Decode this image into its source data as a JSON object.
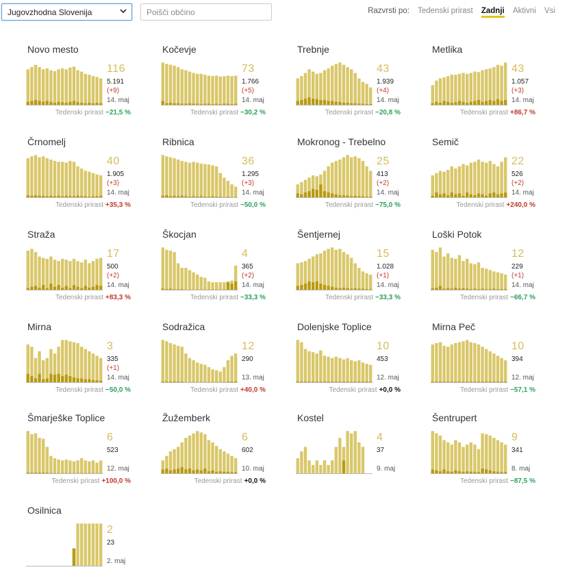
{
  "filters": {
    "region": "Jugovzhodna Slovenija",
    "search_placeholder": "Poišči občino",
    "sort_label": "Razvrsti po:",
    "sort_options": [
      "Tedenski prirast",
      "Zadnji",
      "Aktivni",
      "Vsi"
    ],
    "sort_active": "Zadnji"
  },
  "growth_label": "Tedenski prirast",
  "colors": {
    "bar": "#d9c76a",
    "bar_dark": "#b89a10",
    "negative": "#2ea05a",
    "positive": "#c0392b",
    "accent": "#e8c419"
  },
  "municipalities": [
    {
      "name": "Novo mesto",
      "active": "116",
      "total": "5.191",
      "delta": "(+9)",
      "date": "14. maj",
      "growth": "−21,5 %",
      "trend": "neg",
      "bars": [
        0.8,
        0.85,
        0.9,
        0.85,
        0.8,
        0.82,
        0.78,
        0.76,
        0.8,
        0.82,
        0.8,
        0.84,
        0.86,
        0.78,
        0.75,
        0.7,
        0.68,
        0.65,
        0.63,
        0.6
      ],
      "dark": [
        0.08,
        0.1,
        0.12,
        0.1,
        0.08,
        0.1,
        0.08,
        0.06,
        0.08,
        0.07,
        0.06,
        0.08,
        0.1,
        0.07,
        0.06,
        0.05,
        0.06,
        0.05,
        0.06,
        0.05
      ]
    },
    {
      "name": "Kočevje",
      "active": "73",
      "total": "1.766",
      "delta": "(+5)",
      "date": "14. maj",
      "growth": "−30,2 %",
      "trend": "neg",
      "bars": [
        0.95,
        0.92,
        0.9,
        0.88,
        0.85,
        0.8,
        0.78,
        0.75,
        0.72,
        0.7,
        0.7,
        0.68,
        0.66,
        0.65,
        0.66,
        0.64,
        0.65,
        0.66,
        0.65,
        0.66
      ],
      "dark": [
        0.1,
        0.05,
        0.06,
        0.05,
        0.05,
        0.04,
        0.04,
        0.05,
        0.04,
        0.04,
        0.03,
        0.04,
        0.04,
        0.03,
        0.04,
        0.03,
        0.04,
        0.04,
        0.03,
        0.04
      ]
    },
    {
      "name": "Trebnje",
      "active": "43",
      "total": "1.939",
      "delta": "(+4)",
      "date": "14. maj",
      "growth": "−20,8 %",
      "trend": "neg",
      "bars": [
        0.6,
        0.65,
        0.72,
        0.8,
        0.75,
        0.7,
        0.72,
        0.78,
        0.82,
        0.88,
        0.92,
        0.95,
        0.9,
        0.85,
        0.8,
        0.72,
        0.6,
        0.52,
        0.48,
        0.4
      ],
      "dark": [
        0.1,
        0.12,
        0.15,
        0.18,
        0.15,
        0.14,
        0.12,
        0.12,
        0.1,
        0.1,
        0.08,
        0.08,
        0.06,
        0.06,
        0.05,
        0.05,
        0.04,
        0.04,
        0.03,
        0.03
      ]
    },
    {
      "name": "Metlika",
      "active": "43",
      "total": "1.057",
      "delta": "(+3)",
      "date": "14. maj",
      "growth": "+86,7 %",
      "trend": "pos",
      "bars": [
        0.45,
        0.55,
        0.6,
        0.62,
        0.65,
        0.68,
        0.68,
        0.7,
        0.72,
        0.7,
        0.72,
        0.75,
        0.74,
        0.78,
        0.8,
        0.82,
        0.85,
        0.9,
        0.88,
        0.95
      ],
      "dark": [
        0.05,
        0.08,
        0.06,
        0.1,
        0.08,
        0.06,
        0.07,
        0.1,
        0.08,
        0.06,
        0.08,
        0.1,
        0.12,
        0.08,
        0.1,
        0.12,
        0.1,
        0.14,
        0.1,
        0.12
      ]
    },
    {
      "name": "Črnomelj",
      "active": "40",
      "total": "1.905",
      "delta": "(+3)",
      "date": "14. maj",
      "growth": "+35,3 %",
      "trend": "pos",
      "bars": [
        0.88,
        0.92,
        0.95,
        0.9,
        0.92,
        0.88,
        0.85,
        0.82,
        0.8,
        0.8,
        0.78,
        0.82,
        0.8,
        0.7,
        0.65,
        0.6,
        0.58,
        0.55,
        0.52,
        0.5
      ],
      "dark": [
        0.06,
        0.05,
        0.06,
        0.05,
        0.05,
        0.04,
        0.05,
        0.04,
        0.05,
        0.04,
        0.05,
        0.04,
        0.04,
        0.05,
        0.04,
        0.04,
        0.03,
        0.04,
        0.04,
        0.05
      ]
    },
    {
      "name": "Ribnica",
      "active": "36",
      "total": "1.295",
      "delta": "(+3)",
      "date": "14. maj",
      "growth": "−50,0 %",
      "trend": "neg",
      "bars": [
        0.95,
        0.92,
        0.9,
        0.88,
        0.85,
        0.82,
        0.8,
        0.78,
        0.8,
        0.78,
        0.76,
        0.75,
        0.74,
        0.72,
        0.7,
        0.55,
        0.45,
        0.38,
        0.3,
        0.25
      ],
      "dark": [
        0.05,
        0.06,
        0.04,
        0.05,
        0.04,
        0.05,
        0.04,
        0.03,
        0.04,
        0.03,
        0.04,
        0.03,
        0.03,
        0.04,
        0.03,
        0.03,
        0.02,
        0.03,
        0.02,
        0.02
      ]
    },
    {
      "name": "Mokronog - Trebelno",
      "active": "25",
      "total": "413",
      "delta": "(+2)",
      "date": "14. maj",
      "growth": "−75,0 %",
      "trend": "neg",
      "bars": [
        0.3,
        0.35,
        0.4,
        0.45,
        0.5,
        0.48,
        0.52,
        0.6,
        0.7,
        0.78,
        0.82,
        0.85,
        0.9,
        0.95,
        0.9,
        0.92,
        0.88,
        0.82,
        0.7,
        0.6
      ],
      "dark": [
        0.1,
        0.08,
        0.12,
        0.15,
        0.2,
        0.18,
        0.3,
        0.15,
        0.12,
        0.1,
        0.08,
        0.06,
        0.06,
        0.05,
        0.04,
        0.05,
        0.04,
        0.04,
        0.03,
        0.03
      ]
    },
    {
      "name": "Semič",
      "active": "22",
      "total": "526",
      "delta": "(+2)",
      "date": "14. maj",
      "growth": "+240,0 %",
      "trend": "pos",
      "bars": [
        0.5,
        0.55,
        0.6,
        0.58,
        0.62,
        0.7,
        0.65,
        0.7,
        0.75,
        0.72,
        0.78,
        0.8,
        0.85,
        0.8,
        0.78,
        0.82,
        0.75,
        0.7,
        0.8,
        0.9
      ],
      "dark": [
        0.05,
        0.12,
        0.08,
        0.1,
        0.06,
        0.12,
        0.08,
        0.1,
        0.05,
        0.12,
        0.08,
        0.06,
        0.1,
        0.08,
        0.05,
        0.1,
        0.12,
        0.08,
        0.1,
        0.12
      ]
    },
    {
      "name": "Straža",
      "active": "17",
      "total": "500",
      "delta": "(+2)",
      "date": "14. maj",
      "growth": "+83,3 %",
      "trend": "pos",
      "bars": [
        0.88,
        0.92,
        0.85,
        0.75,
        0.72,
        0.7,
        0.75,
        0.68,
        0.65,
        0.7,
        0.68,
        0.65,
        0.7,
        0.65,
        0.62,
        0.68,
        0.6,
        0.65,
        0.7,
        0.72
      ],
      "dark": [
        0.05,
        0.08,
        0.1,
        0.06,
        0.12,
        0.05,
        0.15,
        0.08,
        0.12,
        0.06,
        0.1,
        0.05,
        0.12,
        0.08,
        0.05,
        0.1,
        0.06,
        0.08,
        0.12,
        0.1
      ]
    },
    {
      "name": "Škocjan",
      "active": "4",
      "total": "365",
      "delta": "(+2)",
      "date": "14. maj",
      "growth": "−33,3 %",
      "trend": "neg",
      "bars": [
        0.95,
        0.9,
        0.88,
        0.85,
        0.6,
        0.5,
        0.5,
        0.45,
        0.4,
        0.35,
        0.3,
        0.28,
        0.2,
        0.18,
        0.18,
        0.18,
        0.18,
        0.2,
        0.22,
        0.55
      ],
      "dark": [
        0.04,
        0.03,
        0.04,
        0.03,
        0.03,
        0.03,
        0.02,
        0.02,
        0.02,
        0.02,
        0.02,
        0.02,
        0.02,
        0.02,
        0.02,
        0.02,
        0.02,
        0.18,
        0.15,
        0.2
      ]
    },
    {
      "name": "Šentjernej",
      "active": "15",
      "total": "1.028",
      "delta": "(+1)",
      "date": "14. maj",
      "growth": "−33,3 %",
      "trend": "neg",
      "bars": [
        0.6,
        0.62,
        0.65,
        0.7,
        0.75,
        0.8,
        0.82,
        0.88,
        0.92,
        0.95,
        0.9,
        0.92,
        0.85,
        0.8,
        0.72,
        0.6,
        0.5,
        0.42,
        0.38,
        0.35
      ],
      "dark": [
        0.1,
        0.12,
        0.15,
        0.2,
        0.18,
        0.2,
        0.15,
        0.12,
        0.1,
        0.08,
        0.06,
        0.05,
        0.06,
        0.05,
        0.04,
        0.05,
        0.04,
        0.04,
        0.03,
        0.03
      ]
    },
    {
      "name": "Loški Potok",
      "active": "12",
      "total": "229",
      "delta": "(+1)",
      "date": "14. maj",
      "growth": "−66,7 %",
      "trend": "neg",
      "bars": [
        0.9,
        0.85,
        0.95,
        0.75,
        0.82,
        0.72,
        0.7,
        0.78,
        0.65,
        0.7,
        0.6,
        0.58,
        0.62,
        0.5,
        0.48,
        0.45,
        0.42,
        0.4,
        0.38,
        0.35
      ],
      "dark": [
        0.05,
        0.06,
        0.1,
        0.04,
        0.05,
        0.04,
        0.06,
        0.04,
        0.05,
        0.04,
        0.03,
        0.04,
        0.03,
        0.04,
        0.03,
        0.03,
        0.04,
        0.03,
        0.03,
        0.03
      ]
    },
    {
      "name": "Mirna",
      "active": "3",
      "total": "335",
      "delta": "(+1)",
      "date": "14. maj",
      "growth": "−50,0 %",
      "trend": "neg",
      "bars": [
        0.85,
        0.8,
        0.55,
        0.7,
        0.5,
        0.55,
        0.75,
        0.65,
        0.8,
        0.95,
        0.95,
        0.92,
        0.9,
        0.88,
        0.8,
        0.75,
        0.7,
        0.65,
        0.6,
        0.55
      ],
      "dark": [
        0.2,
        0.15,
        0.1,
        0.2,
        0.08,
        0.1,
        0.2,
        0.18,
        0.2,
        0.15,
        0.18,
        0.15,
        0.12,
        0.1,
        0.1,
        0.08,
        0.08,
        0.06,
        0.06,
        0.05
      ]
    },
    {
      "name": "Sodražica",
      "active": "12",
      "total": "290",
      "delta": "",
      "date": "13. maj",
      "growth": "+40,0 %",
      "trend": "pos",
      "bars": [
        0.95,
        0.92,
        0.88,
        0.85,
        0.82,
        0.8,
        0.65,
        0.55,
        0.5,
        0.45,
        0.42,
        0.4,
        0.35,
        0.3,
        0.28,
        0.25,
        0.35,
        0.5,
        0.6,
        0.65
      ],
      "dark": [
        0.03,
        0.03,
        0.03,
        0.03,
        0.03,
        0.03,
        0.02,
        0.02,
        0.02,
        0.02,
        0.02,
        0.02,
        0.02,
        0.02,
        0.02,
        0.02,
        0.02,
        0.03,
        0.03,
        0.03
      ]
    },
    {
      "name": "Dolenjske Toplice",
      "active": "10",
      "total": "453",
      "delta": "",
      "date": "12. maj",
      "growth": "+0,0 %",
      "trend": "zero",
      "bars": [
        0.95,
        0.9,
        0.75,
        0.7,
        0.68,
        0.65,
        0.72,
        0.6,
        0.58,
        0.55,
        0.58,
        0.55,
        0.52,
        0.55,
        0.5,
        0.48,
        0.5,
        0.45,
        0.42,
        0.4
      ],
      "dark": [
        0.03,
        0.03,
        0.03,
        0.03,
        0.03,
        0.03,
        0.03,
        0.03,
        0.03,
        0.03,
        0.03,
        0.03,
        0.03,
        0.03,
        0.03,
        0.03,
        0.03,
        0.03,
        0.03,
        0.03
      ]
    },
    {
      "name": "Mirna Peč",
      "active": "10",
      "total": "394",
      "delta": "",
      "date": "12. maj",
      "growth": "−57,1 %",
      "trend": "neg",
      "bars": [
        0.85,
        0.88,
        0.9,
        0.82,
        0.8,
        0.85,
        0.88,
        0.9,
        0.92,
        0.95,
        0.9,
        0.88,
        0.85,
        0.8,
        0.75,
        0.7,
        0.65,
        0.6,
        0.55,
        0.5
      ],
      "dark": [
        0.03,
        0.03,
        0.03,
        0.03,
        0.03,
        0.03,
        0.03,
        0.03,
        0.03,
        0.03,
        0.03,
        0.03,
        0.03,
        0.03,
        0.03,
        0.03,
        0.03,
        0.03,
        0.03,
        0.03
      ]
    },
    {
      "name": "Šmarješke Toplice",
      "active": "6",
      "total": "523",
      "delta": "",
      "date": "12. maj",
      "growth": "+100,0 %",
      "trend": "pos",
      "bars": [
        0.95,
        0.88,
        0.9,
        0.8,
        0.78,
        0.6,
        0.4,
        0.35,
        0.32,
        0.3,
        0.32,
        0.3,
        0.28,
        0.3,
        0.35,
        0.3,
        0.28,
        0.3,
        0.25,
        0.3
      ],
      "dark": [
        0.03,
        0.03,
        0.03,
        0.03,
        0.03,
        0.03,
        0.02,
        0.02,
        0.02,
        0.02,
        0.02,
        0.02,
        0.02,
        0.02,
        0.02,
        0.02,
        0.02,
        0.02,
        0.02,
        0.02
      ]
    },
    {
      "name": "Žužemberk",
      "active": "6",
      "total": "602",
      "delta": "",
      "date": "10. maj",
      "growth": "+0,0 %",
      "trend": "zero",
      "bars": [
        0.3,
        0.4,
        0.5,
        0.55,
        0.6,
        0.7,
        0.8,
        0.85,
        0.9,
        0.95,
        0.92,
        0.88,
        0.75,
        0.7,
        0.62,
        0.55,
        0.5,
        0.45,
        0.4,
        0.35
      ],
      "dark": [
        0.1,
        0.12,
        0.08,
        0.1,
        0.12,
        0.15,
        0.1,
        0.12,
        0.08,
        0.1,
        0.08,
        0.12,
        0.06,
        0.08,
        0.05,
        0.06,
        0.05,
        0.05,
        0.04,
        0.04
      ]
    },
    {
      "name": "Kostel",
      "active": "4",
      "total": "37",
      "delta": "",
      "date": "9. maj",
      "growth": "",
      "trend": "zero",
      "bars": [
        0.35,
        0.5,
        0.6,
        0.3,
        0.2,
        0.3,
        0.2,
        0.3,
        0.2,
        0.3,
        0.6,
        0.8,
        0.6,
        0.95,
        0.9,
        0.95,
        0.7,
        0.6,
        0.0,
        0.0
      ],
      "dark": [
        0.0,
        0.0,
        0.0,
        0.0,
        0.0,
        0.0,
        0.0,
        0.0,
        0.0,
        0.0,
        0.0,
        0.0,
        0.3,
        0.0,
        0.0,
        0.0,
        0.0,
        0.0,
        0.0,
        0.0
      ]
    },
    {
      "name": "Šentrupert",
      "active": "9",
      "total": "341",
      "delta": "",
      "date": "8. maj",
      "growth": "−87,5 %",
      "trend": "neg",
      "bars": [
        0.95,
        0.9,
        0.85,
        0.75,
        0.7,
        0.65,
        0.75,
        0.7,
        0.6,
        0.65,
        0.7,
        0.65,
        0.55,
        0.9,
        0.88,
        0.85,
        0.8,
        0.75,
        0.7,
        0.65
      ],
      "dark": [
        0.1,
        0.08,
        0.06,
        0.1,
        0.06,
        0.05,
        0.08,
        0.06,
        0.05,
        0.06,
        0.05,
        0.05,
        0.04,
        0.12,
        0.1,
        0.08,
        0.06,
        0.05,
        0.04,
        0.04
      ]
    },
    {
      "name": "Osilnica",
      "active": "2",
      "total": "23",
      "delta": "",
      "date": "2. maj",
      "growth": "",
      "trend": "zero",
      "bars": [
        0.0,
        0.0,
        0.0,
        0.0,
        0.0,
        0.0,
        0.0,
        0.0,
        0.0,
        0.0,
        0.0,
        0.0,
        0.4,
        0.95,
        0.95,
        0.95,
        0.95,
        0.95,
        0.95,
        0.95
      ],
      "dark": [
        0.0,
        0.0,
        0.0,
        0.0,
        0.0,
        0.0,
        0.0,
        0.0,
        0.0,
        0.0,
        0.0,
        0.0,
        0.4,
        0.0,
        0.0,
        0.0,
        0.0,
        0.0,
        0.0,
        0.0
      ]
    }
  ]
}
